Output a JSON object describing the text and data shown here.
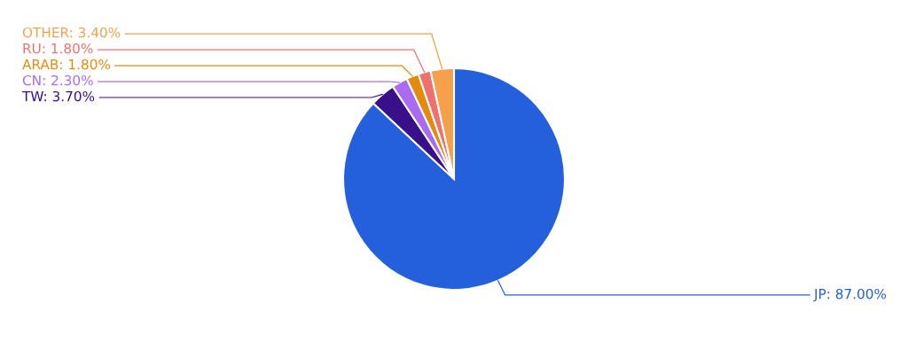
{
  "chart_data": {
    "type": "pie",
    "categories": [
      "JP",
      "TW",
      "CN",
      "ARAB",
      "RU",
      "OTHER"
    ],
    "values": [
      87.0,
      3.7,
      2.3,
      1.8,
      1.8,
      3.4
    ],
    "value_labels": [
      "87.00%",
      "3.70%",
      "2.30%",
      "1.80%",
      "1.80%",
      "3.40%"
    ],
    "colors": [
      "#245fdc",
      "#3a0f8a",
      "#a96cf0",
      "#e48a0c",
      "#f07070",
      "#f5a04a"
    ]
  }
}
